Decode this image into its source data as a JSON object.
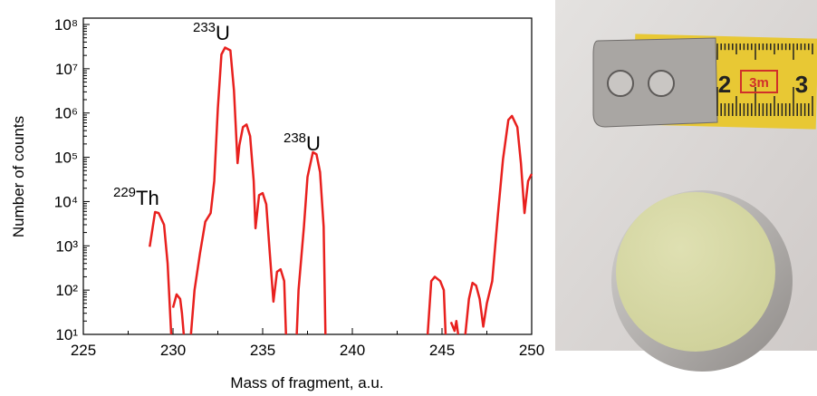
{
  "chart_data": {
    "type": "line",
    "x_label": "Mass of fragment, a.u.",
    "y_label": "Number of counts",
    "xlim": [
      225,
      250
    ],
    "xticks": [
      225,
      230,
      235,
      240,
      245,
      250
    ],
    "ylim": [
      10,
      100000000
    ],
    "log_y": true,
    "yticks": [
      {
        "value": 10,
        "label": "10¹"
      },
      {
        "value": 100,
        "label": "10²"
      },
      {
        "value": 1000,
        "label": "10³"
      },
      {
        "value": 10000,
        "label": "10⁴"
      },
      {
        "value": 100000,
        "label": "10⁵"
      },
      {
        "value": 1000000,
        "label": "10⁶"
      },
      {
        "value": 10000000,
        "label": "10⁷"
      },
      {
        "value": 100000000,
        "label": "10⁸"
      }
    ],
    "x": [
      228.7,
      229.0,
      229.2,
      229.5,
      229.7,
      229.9,
      229.95,
      230.0,
      230.2,
      230.4,
      230.5,
      230.6,
      230.8,
      231.0,
      231.2,
      231.5,
      231.8,
      232.1,
      232.3,
      232.5,
      232.7,
      232.9,
      233.2,
      233.4,
      233.6,
      233.7,
      233.9,
      234.1,
      234.3,
      234.5,
      234.6,
      234.8,
      235.0,
      235.2,
      235.4,
      235.6,
      235.8,
      236.0,
      236.2,
      236.3,
      236.6,
      236.9,
      237.0,
      237.3,
      237.5,
      237.8,
      238.0,
      238.2,
      238.4,
      238.5,
      241.0,
      244.2,
      244.4,
      244.6,
      244.9,
      245.1,
      245.2,
      245.35,
      245.5,
      245.7,
      245.8,
      245.9,
      246.1,
      246.3,
      246.5,
      246.7,
      246.9,
      247.1,
      247.3,
      247.5,
      247.8,
      248.1,
      248.4,
      248.7,
      248.9,
      249.2,
      249.4,
      249.6,
      249.8,
      250.0
    ],
    "series": [
      {
        "color": "#e8201e",
        "values": [
          950,
          5800,
          5500,
          3000,
          400,
          10,
          null,
          40,
          80,
          63,
          30,
          10,
          null,
          10,
          100,
          660,
          3500,
          5500,
          29000,
          1260000,
          21000000,
          30000000,
          26000000,
          3200000,
          74000,
          186000,
          480000,
          550000,
          300000,
          29000,
          2500,
          14000,
          15500,
          8700,
          660,
          55,
          260,
          295,
          160,
          10,
          null,
          10,
          100,
          2700,
          36000,
          130000,
          117000,
          46000,
          2700,
          10,
          null,
          10,
          160,
          200,
          160,
          100,
          10,
          null,
          19,
          12,
          20,
          10,
          null,
          10,
          63,
          146,
          127,
          63,
          15,
          50,
          160,
          4300,
          90000,
          700000,
          860000,
          480000,
          74000,
          5500,
          29000,
          42000
        ]
      }
    ],
    "annotations": [
      {
        "isotope": "229",
        "element": "Th"
      },
      {
        "isotope": "233",
        "element": "U"
      },
      {
        "isotope": "238",
        "element": "U"
      }
    ]
  },
  "photo": {
    "ruler_labels": [
      "2",
      "3m",
      "3"
    ]
  }
}
